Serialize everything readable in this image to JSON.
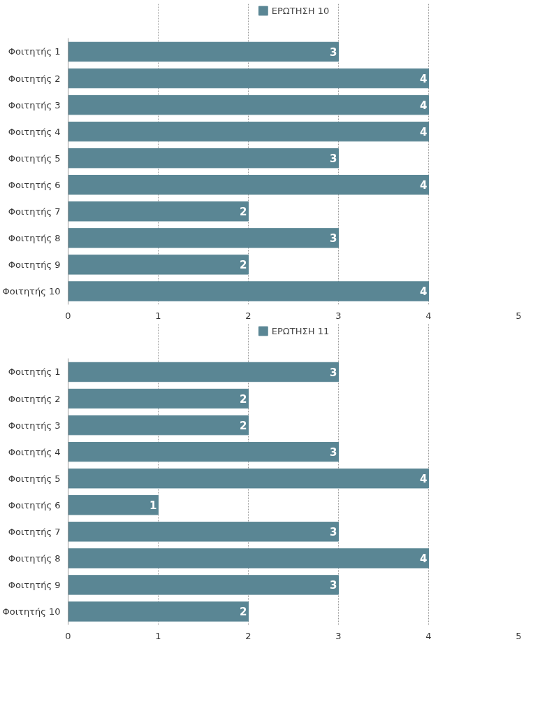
{
  "chart_data": [
    {
      "type": "bar",
      "orientation": "horizontal",
      "categories": [
        "Φοιτητής 1",
        "Φοιτητής 2",
        "Φοιτητής 3",
        "Φοιτητής 4",
        "Φοιτητής 5",
        "Φοιτητής 6",
        "Φοιτητής 7",
        "Φοιτητής 8",
        "Φοιτητής 9",
        "Φοιτητής 10"
      ],
      "series": [
        {
          "name": "ΕΡΩΤΗΣΗ 10",
          "color": "#5a8694",
          "values": [
            3,
            4,
            4,
            4,
            3,
            4,
            2,
            3,
            2,
            4
          ]
        }
      ],
      "xlim": [
        0,
        5
      ],
      "xticks": [
        0,
        1,
        2,
        3,
        4,
        5
      ],
      "grid": "x",
      "legend": "top",
      "data_labels": true
    },
    {
      "type": "bar",
      "orientation": "horizontal",
      "categories": [
        "Φοιτητής 1",
        "Φοιτητής 2",
        "Φοιτητής 3",
        "Φοιτητής 4",
        "Φοιτητής 5",
        "Φοιτητής 6",
        "Φοιτητής 7",
        "Φοιτητής 8",
        "Φοιτητής 9",
        "Φοιτητής 10"
      ],
      "series": [
        {
          "name": "ΕΡΩΤΗΣΗ 11",
          "color": "#5a8694",
          "values": [
            3,
            2,
            2,
            3,
            4,
            1,
            3,
            4,
            3,
            2
          ]
        }
      ],
      "xlim": [
        0,
        5
      ],
      "xticks": [
        0,
        1,
        2,
        3,
        4,
        5
      ],
      "grid": "x",
      "legend": "top",
      "data_labels": true
    }
  ]
}
